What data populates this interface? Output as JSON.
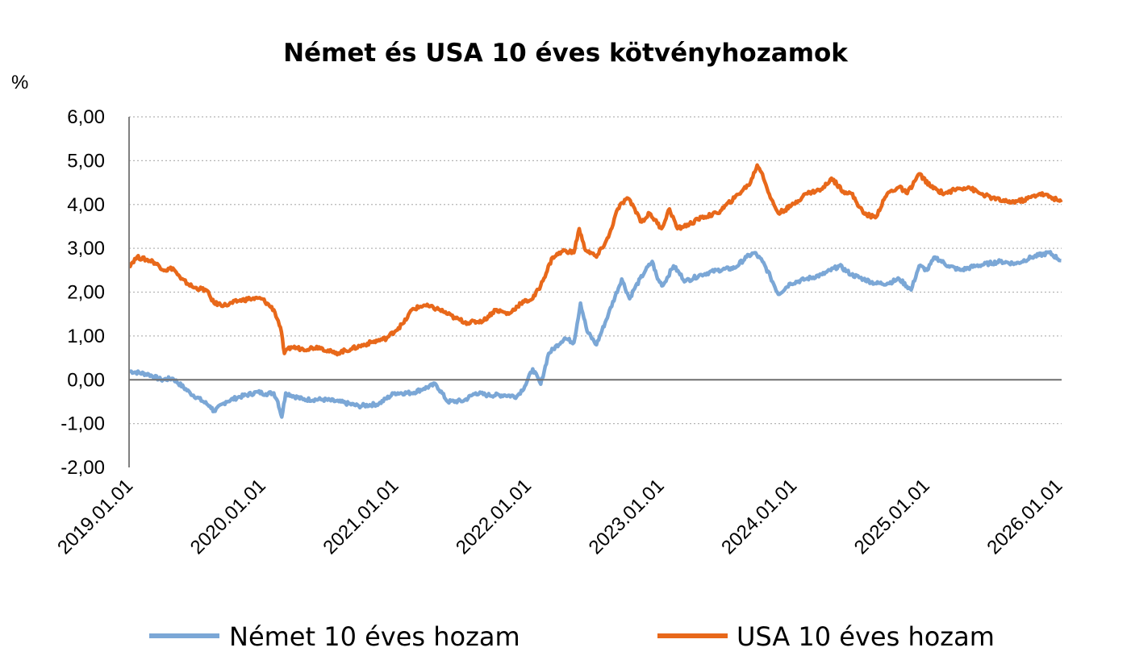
{
  "chart_data": {
    "type": "line",
    "title": "Német és USA 10 éves kötvényhozamok",
    "ylabel": "%",
    "xlabel": "",
    "ylim": [
      -2,
      6
    ],
    "xlim": [
      2019.0,
      2026.02
    ],
    "y_ticks": [
      "6,00",
      "5,00",
      "4,00",
      "3,00",
      "2,00",
      "1,00",
      "0,00",
      "-1,00",
      "-2,00"
    ],
    "y_tick_values": [
      6,
      5,
      4,
      3,
      2,
      1,
      0,
      -1,
      -2
    ],
    "x_ticks": [
      "2019.01.01",
      "2020.01.01",
      "2021.01.01",
      "2022.01.01",
      "2023.01.01",
      "2024.01.01",
      "2025.01.01",
      "2026.01.01"
    ],
    "x_tick_values": [
      2019,
      2020,
      2021,
      2022,
      2023,
      2024,
      2025,
      2026
    ],
    "grid": true,
    "legend_position": "bottom",
    "series": [
      {
        "name": "Német 10 éves hozam",
        "color": "#7BA7D6",
        "points": [
          [
            2019.0,
            0.2
          ],
          [
            2019.15,
            0.12
          ],
          [
            2019.24,
            0.0
          ],
          [
            2019.33,
            0.03
          ],
          [
            2019.46,
            -0.3
          ],
          [
            2019.61,
            -0.6
          ],
          [
            2019.64,
            -0.72
          ],
          [
            2019.73,
            -0.5
          ],
          [
            2019.82,
            -0.4
          ],
          [
            2019.97,
            -0.28
          ],
          [
            2020.03,
            -0.32
          ],
          [
            2020.09,
            -0.3
          ],
          [
            2020.12,
            -0.5
          ],
          [
            2020.15,
            -0.85
          ],
          [
            2020.18,
            -0.3
          ],
          [
            2020.31,
            -0.45
          ],
          [
            2020.46,
            -0.45
          ],
          [
            2020.58,
            -0.5
          ],
          [
            2020.73,
            -0.6
          ],
          [
            2020.88,
            -0.55
          ],
          [
            2021.0,
            -0.3
          ],
          [
            2021.13,
            -0.3
          ],
          [
            2021.22,
            -0.2
          ],
          [
            2021.31,
            -0.1
          ],
          [
            2021.4,
            -0.5
          ],
          [
            2021.52,
            -0.48
          ],
          [
            2021.61,
            -0.3
          ],
          [
            2021.7,
            -0.35
          ],
          [
            2021.83,
            -0.35
          ],
          [
            2021.92,
            -0.38
          ],
          [
            2021.98,
            -0.15
          ],
          [
            2022.04,
            0.25
          ],
          [
            2022.1,
            -0.1
          ],
          [
            2022.16,
            0.6
          ],
          [
            2022.28,
            0.95
          ],
          [
            2022.35,
            0.85
          ],
          [
            2022.4,
            1.75
          ],
          [
            2022.45,
            1.1
          ],
          [
            2022.52,
            0.8
          ],
          [
            2022.61,
            1.5
          ],
          [
            2022.71,
            2.3
          ],
          [
            2022.77,
            1.85
          ],
          [
            2022.8,
            2.05
          ],
          [
            2022.89,
            2.5
          ],
          [
            2022.94,
            2.7
          ],
          [
            2022.98,
            2.3
          ],
          [
            2023.02,
            2.15
          ],
          [
            2023.1,
            2.6
          ],
          [
            2023.19,
            2.25
          ],
          [
            2023.31,
            2.4
          ],
          [
            2023.43,
            2.5
          ],
          [
            2023.56,
            2.55
          ],
          [
            2023.65,
            2.8
          ],
          [
            2023.71,
            2.9
          ],
          [
            2023.77,
            2.7
          ],
          [
            2023.83,
            2.35
          ],
          [
            2023.89,
            1.95
          ],
          [
            2023.98,
            2.2
          ],
          [
            2024.1,
            2.3
          ],
          [
            2024.22,
            2.4
          ],
          [
            2024.35,
            2.6
          ],
          [
            2024.44,
            2.4
          ],
          [
            2024.53,
            2.3
          ],
          [
            2024.62,
            2.2
          ],
          [
            2024.71,
            2.2
          ],
          [
            2024.8,
            2.3
          ],
          [
            2024.89,
            2.05
          ],
          [
            2024.95,
            2.6
          ],
          [
            2025.01,
            2.5
          ],
          [
            2025.07,
            2.8
          ],
          [
            2025.17,
            2.6
          ],
          [
            2025.26,
            2.5
          ],
          [
            2025.38,
            2.6
          ],
          [
            2025.56,
            2.7
          ],
          [
            2025.68,
            2.65
          ],
          [
            2025.8,
            2.8
          ],
          [
            2025.93,
            2.9
          ],
          [
            2026.02,
            2.72
          ]
        ]
      },
      {
        "name": "USA 10 éves hozam",
        "color": "#E8681A",
        "points": [
          [
            2019.0,
            2.6
          ],
          [
            2019.06,
            2.8
          ],
          [
            2019.18,
            2.7
          ],
          [
            2019.27,
            2.5
          ],
          [
            2019.33,
            2.55
          ],
          [
            2019.39,
            2.3
          ],
          [
            2019.49,
            2.1
          ],
          [
            2019.58,
            2.05
          ],
          [
            2019.64,
            1.75
          ],
          [
            2019.73,
            1.7
          ],
          [
            2019.82,
            1.8
          ],
          [
            2019.91,
            1.85
          ],
          [
            2020.0,
            1.85
          ],
          [
            2020.09,
            1.6
          ],
          [
            2020.14,
            1.2
          ],
          [
            2020.17,
            0.6
          ],
          [
            2020.22,
            0.75
          ],
          [
            2020.31,
            0.7
          ],
          [
            2020.43,
            0.75
          ],
          [
            2020.55,
            0.6
          ],
          [
            2020.67,
            0.7
          ],
          [
            2020.82,
            0.85
          ],
          [
            2020.94,
            0.95
          ],
          [
            2021.07,
            1.3
          ],
          [
            2021.13,
            1.6
          ],
          [
            2021.22,
            1.7
          ],
          [
            2021.34,
            1.6
          ],
          [
            2021.46,
            1.4
          ],
          [
            2021.55,
            1.3
          ],
          [
            2021.67,
            1.35
          ],
          [
            2021.76,
            1.6
          ],
          [
            2021.86,
            1.5
          ],
          [
            2021.95,
            1.75
          ],
          [
            2022.04,
            1.85
          ],
          [
            2022.1,
            2.15
          ],
          [
            2022.19,
            2.8
          ],
          [
            2022.28,
            2.95
          ],
          [
            2022.35,
            2.9
          ],
          [
            2022.39,
            3.45
          ],
          [
            2022.43,
            3.0
          ],
          [
            2022.52,
            2.8
          ],
          [
            2022.61,
            3.25
          ],
          [
            2022.68,
            3.9
          ],
          [
            2022.75,
            4.15
          ],
          [
            2022.8,
            3.95
          ],
          [
            2022.86,
            3.6
          ],
          [
            2022.92,
            3.8
          ],
          [
            2023.01,
            3.45
          ],
          [
            2023.07,
            3.9
          ],
          [
            2023.13,
            3.45
          ],
          [
            2023.22,
            3.55
          ],
          [
            2023.31,
            3.7
          ],
          [
            2023.43,
            3.8
          ],
          [
            2023.56,
            4.15
          ],
          [
            2023.68,
            4.5
          ],
          [
            2023.73,
            4.9
          ],
          [
            2023.77,
            4.7
          ],
          [
            2023.83,
            4.15
          ],
          [
            2023.89,
            3.8
          ],
          [
            2023.98,
            3.95
          ],
          [
            2024.1,
            4.25
          ],
          [
            2024.22,
            4.35
          ],
          [
            2024.29,
            4.6
          ],
          [
            2024.38,
            4.3
          ],
          [
            2024.44,
            4.25
          ],
          [
            2024.53,
            3.8
          ],
          [
            2024.62,
            3.7
          ],
          [
            2024.71,
            4.25
          ],
          [
            2024.8,
            4.4
          ],
          [
            2024.86,
            4.25
          ],
          [
            2024.95,
            4.7
          ],
          [
            2025.04,
            4.4
          ],
          [
            2025.14,
            4.25
          ],
          [
            2025.23,
            4.35
          ],
          [
            2025.32,
            4.4
          ],
          [
            2025.41,
            4.25
          ],
          [
            2025.5,
            4.15
          ],
          [
            2025.62,
            4.05
          ],
          [
            2025.74,
            4.1
          ],
          [
            2025.86,
            4.25
          ],
          [
            2025.96,
            4.15
          ],
          [
            2026.02,
            4.05
          ]
        ]
      }
    ]
  }
}
